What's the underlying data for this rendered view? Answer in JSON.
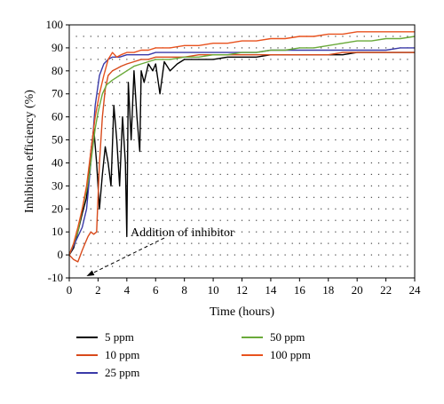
{
  "chart_data": {
    "type": "line",
    "xlabel": "Time (hours)",
    "ylabel": "Inhibition efficiency (%)",
    "xlim": [
      0,
      24
    ],
    "ylim": [
      -10,
      100
    ],
    "xticks": [
      0,
      2,
      4,
      6,
      8,
      10,
      12,
      14,
      16,
      18,
      20,
      22,
      24
    ],
    "yticks": [
      -10,
      0,
      10,
      20,
      30,
      40,
      50,
      60,
      70,
      80,
      90,
      100
    ],
    "grid": "dotted",
    "annotation": {
      "text": "Addition of inhibitor",
      "x": 1.2,
      "y": -10
    },
    "legend_position": "bottom",
    "series": [
      {
        "name": "5 ppm",
        "color": "#000000",
        "x": [
          0,
          0.3,
          0.6,
          0.9,
          1.2,
          1.5,
          1.7,
          1.9,
          2.1,
          2.3,
          2.5,
          2.7,
          2.9,
          3.1,
          3.3,
          3.5,
          3.7,
          3.9,
          4.0,
          4.1,
          4.3,
          4.5,
          4.7,
          4.9,
          5.0,
          5.2,
          5.5,
          5.8,
          6.0,
          6.3,
          6.6,
          7,
          7.5,
          8,
          9,
          10,
          11,
          12,
          13,
          14,
          15,
          16,
          17,
          18,
          19,
          20,
          21,
          22,
          23,
          24
        ],
        "y": [
          0,
          3,
          10,
          18,
          25,
          45,
          55,
          40,
          20,
          35,
          47,
          40,
          30,
          65,
          50,
          30,
          60,
          40,
          8,
          75,
          50,
          80,
          60,
          45,
          80,
          75,
          83,
          80,
          83,
          70,
          84,
          80,
          83,
          85,
          85,
          85,
          86,
          86,
          86,
          87,
          87,
          87,
          87,
          87,
          87,
          88,
          88,
          88,
          88,
          88
        ]
      },
      {
        "name": "10 ppm",
        "color": "#d84a1b",
        "x": [
          0,
          0.3,
          0.6,
          0.9,
          1.1,
          1.3,
          1.5,
          1.7,
          1.9,
          2.1,
          2.3,
          2.5,
          2.7,
          3,
          3.3,
          3.6,
          4,
          4.5,
          5,
          5.5,
          6,
          7,
          8,
          9,
          10,
          11,
          12,
          13,
          14,
          15,
          16,
          17,
          18,
          19,
          20,
          21,
          22,
          23,
          24
        ],
        "y": [
          0,
          -2,
          -3,
          2,
          5,
          8,
          10,
          9,
          10,
          40,
          60,
          72,
          78,
          80,
          81,
          82,
          83,
          84,
          85,
          85,
          86,
          86,
          86,
          87,
          87,
          87,
          87,
          87,
          87,
          87,
          87,
          87,
          87,
          88,
          88,
          88,
          88,
          88,
          88
        ]
      },
      {
        "name": "25 ppm",
        "color": "#3a3aa8",
        "x": [
          0,
          0.3,
          0.6,
          0.9,
          1.2,
          1.5,
          1.8,
          2.1,
          2.4,
          2.7,
          3,
          3.5,
          4,
          4.5,
          5,
          5.5,
          6,
          7,
          8,
          9,
          10,
          11,
          12,
          13,
          14,
          15,
          16,
          17,
          18,
          19,
          20,
          21,
          22,
          23,
          24
        ],
        "y": [
          0,
          4,
          8,
          12,
          20,
          40,
          65,
          78,
          83,
          85,
          86,
          86,
          87,
          87,
          87,
          87,
          88,
          88,
          88,
          88,
          88,
          88,
          88,
          88,
          89,
          89,
          89,
          89,
          89,
          89,
          89,
          89,
          89,
          90,
          90
        ]
      },
      {
        "name": "50 ppm",
        "color": "#6aaa3a",
        "x": [
          0,
          0.3,
          0.6,
          0.9,
          1.2,
          1.4,
          1.6,
          1.8,
          2,
          2.3,
          2.6,
          3,
          3.5,
          4,
          4.5,
          5,
          5.5,
          6,
          7,
          8,
          9,
          10,
          11,
          12,
          13,
          14,
          15,
          16,
          17,
          18,
          19,
          20,
          21,
          22,
          23,
          24
        ],
        "y": [
          0,
          5,
          10,
          20,
          28,
          35,
          45,
          55,
          62,
          70,
          74,
          76,
          78,
          80,
          82,
          83,
          84,
          85,
          85,
          86,
          86,
          87,
          87,
          88,
          88,
          89,
          89,
          90,
          90,
          91,
          92,
          93,
          93,
          94,
          94,
          95
        ]
      },
      {
        "name": "100 ppm",
        "color": "#e8521e",
        "x": [
          0,
          0.3,
          0.6,
          0.9,
          1.2,
          1.5,
          1.8,
          2.1,
          2.4,
          2.7,
          3,
          3.3,
          3.6,
          4,
          4.5,
          5,
          5.5,
          6,
          7,
          8,
          9,
          10,
          11,
          12,
          13,
          14,
          15,
          16,
          17,
          18,
          19,
          20,
          21,
          22,
          23,
          24
        ],
        "y": [
          0,
          5,
          12,
          20,
          30,
          45,
          60,
          70,
          78,
          85,
          88,
          86,
          87,
          88,
          88,
          89,
          89,
          90,
          90,
          91,
          91,
          92,
          92,
          93,
          93,
          94,
          94,
          95,
          95,
          96,
          96,
          97,
          97,
          97,
          97,
          97
        ]
      }
    ]
  }
}
